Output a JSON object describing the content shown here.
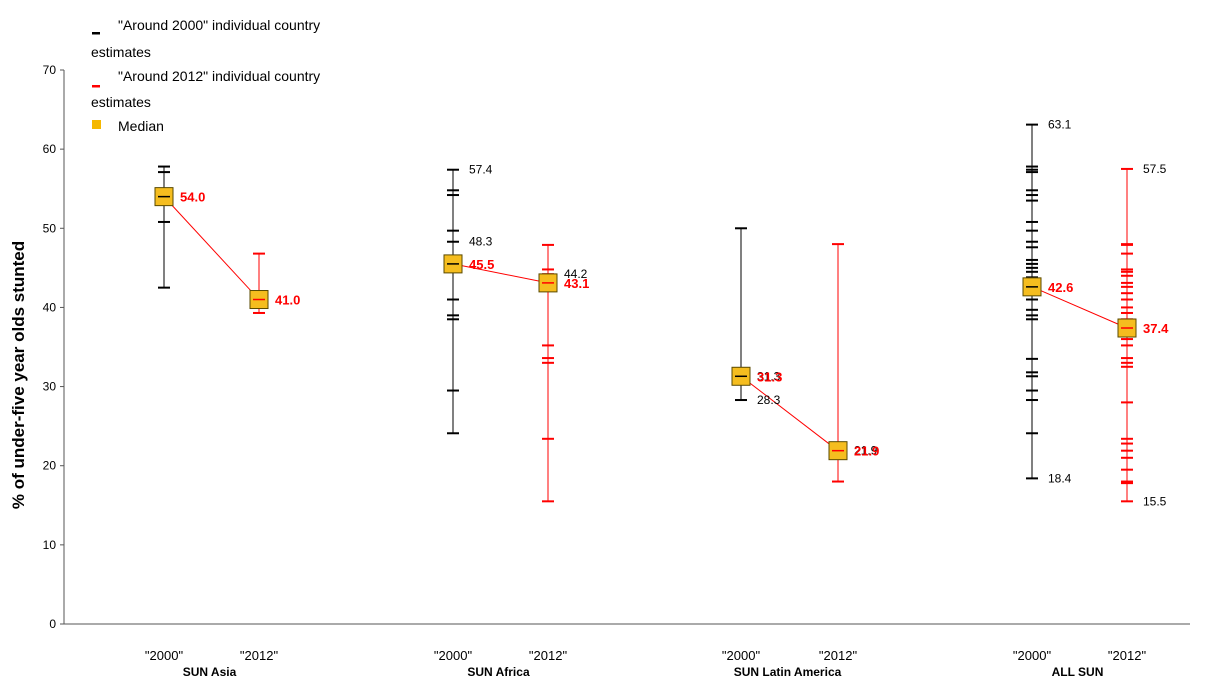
{
  "chart_data": {
    "type": "scatter",
    "title": "",
    "xlabel": "",
    "ylabel": "% of under-five year olds stunted",
    "ylim": [
      0,
      70
    ],
    "yticks": [
      "0",
      "10",
      "20",
      "30",
      "40",
      "50",
      "60",
      "70"
    ],
    "grid": false,
    "legend": {
      "position": "top-left",
      "entries": [
        {
          "marker": "_",
          "text_line1": "\"Around 2000\" individual country",
          "text_line2": "estimates",
          "color": "#000000"
        },
        {
          "marker": "_",
          "text_line1": "\"Around 2012\" individual country",
          "text_line2": "estimates",
          "color": "#ff0000"
        },
        {
          "marker": "square",
          "text_line1": "Median",
          "text_line2": "",
          "color": "#f5b800"
        }
      ]
    },
    "colors": {
      "period_2000": "#000000",
      "period_2012": "#ff0000",
      "median_fill": "#f5bd1f",
      "median_stroke": "#5a4a00",
      "connector": "#ff0000"
    },
    "groups": [
      {
        "name": "SUN Asia",
        "periods": [
          {
            "label": "\"2000\"",
            "period": "2000",
            "min": 42.5,
            "max": 57.8,
            "median": 54.0,
            "estimates": [
              42.5,
              50.8,
              53.5,
              57.1,
              57.8
            ],
            "median_label": "54.0",
            "value_labels": []
          },
          {
            "label": "\"2012\"",
            "period": "2012",
            "min": 39.3,
            "max": 46.8,
            "median": 41.0,
            "estimates": [
              39.3,
              40.0,
              41.0,
              41.8,
              46.8
            ],
            "median_label": "41.0",
            "value_labels": []
          }
        ]
      },
      {
        "name": "SUN Africa",
        "periods": [
          {
            "label": "\"2000\"",
            "period": "2000",
            "min": 24.1,
            "max": 57.4,
            "median": 45.5,
            "estimates": [
              24.1,
              29.5,
              38.5,
              39.0,
              41.0,
              44.5,
              45.0,
              45.5,
              46.0,
              48.3,
              49.7,
              54.2,
              54.8,
              57.4
            ],
            "median_label": "45.5",
            "value_labels": [
              {
                "value": 57.4,
                "text": "57.4"
              },
              {
                "value": 48.3,
                "text": "48.3"
              }
            ]
          },
          {
            "label": "\"2012\"",
            "period": "2012",
            "min": 15.5,
            "max": 47.9,
            "median": 43.1,
            "estimates": [
              15.5,
              23.4,
              33.0,
              33.6,
              35.2,
              42.1,
              42.6,
              43.1,
              43.6,
              44.2,
              44.8,
              47.9
            ],
            "median_label": "43.1",
            "value_labels": [
              {
                "value": 44.2,
                "text": "44.2"
              }
            ]
          }
        ]
      },
      {
        "name": "SUN Latin America",
        "periods": [
          {
            "label": "\"2000\"",
            "period": "2000",
            "min": 28.3,
            "max": 50.0,
            "median": 31.3,
            "estimates": [
              28.3,
              31.3,
              50.0
            ],
            "median_label": "31.3",
            "value_labels": [
              {
                "value": 31.3,
                "text": "31.3"
              },
              {
                "value": 28.3,
                "text": "28.3"
              }
            ]
          },
          {
            "label": "\"2012\"",
            "period": "2012",
            "min": 18.0,
            "max": 48.0,
            "median": 21.9,
            "estimates": [
              18.0,
              21.9,
              48.0
            ],
            "median_label": "21.9",
            "value_labels": [
              {
                "value": 21.9,
                "text": "21.9"
              }
            ]
          }
        ]
      },
      {
        "name": "ALL SUN",
        "periods": [
          {
            "label": "\"2000\"",
            "period": "2000",
            "min": 18.4,
            "max": 63.1,
            "median": 42.6,
            "estimates": [
              18.4,
              24.1,
              28.3,
              29.5,
              31.3,
              31.8,
              33.5,
              38.5,
              39.0,
              39.7,
              41.0,
              41.6,
              42.1,
              42.6,
              43.1,
              43.8,
              44.5,
              45.0,
              45.5,
              46.0,
              47.6,
              48.3,
              49.7,
              50.8,
              53.5,
              54.2,
              54.8,
              57.1,
              57.4,
              57.8,
              63.1
            ],
            "median_label": "42.6",
            "value_labels": [
              {
                "value": 63.1,
                "text": "63.1"
              },
              {
                "value": 18.4,
                "text": "18.4"
              }
            ]
          },
          {
            "label": "\"2012\"",
            "period": "2012",
            "min": 15.5,
            "max": 57.5,
            "median": 37.4,
            "estimates": [
              15.5,
              17.8,
              18.0,
              19.5,
              21.0,
              21.9,
              22.8,
              23.4,
              28.0,
              32.5,
              33.0,
              33.6,
              35.2,
              36.0,
              37.4,
              38.5,
              39.3,
              40.0,
              41.0,
              41.8,
              42.6,
              43.1,
              44.0,
              44.5,
              44.8,
              46.8,
              47.9,
              48.0,
              57.5
            ],
            "median_label": "37.4",
            "value_labels": [
              {
                "value": 57.5,
                "text": "57.5"
              },
              {
                "value": 15.5,
                "text": "15.5"
              }
            ]
          }
        ]
      }
    ]
  }
}
